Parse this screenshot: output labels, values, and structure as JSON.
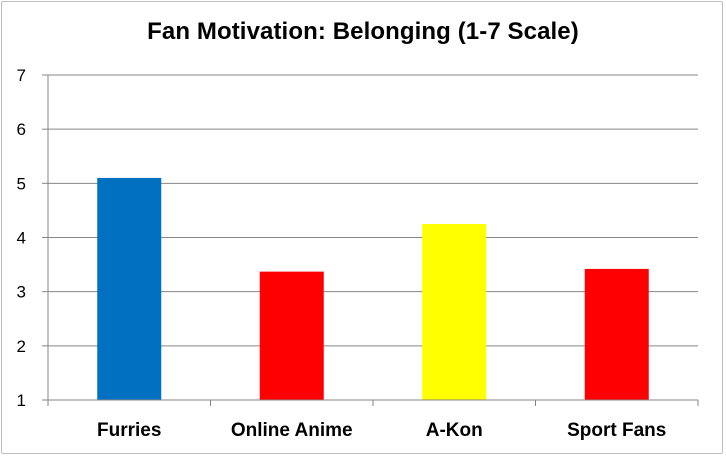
{
  "chart_data": {
    "type": "bar",
    "title": "Fan Motivation: Belonging (1-7 Scale)",
    "xlabel": "",
    "ylabel": "",
    "categories": [
      "Furries",
      "Online Anime",
      "A-Kon",
      "Sport Fans"
    ],
    "values": [
      5.1,
      3.37,
      4.25,
      3.42
    ],
    "colors": [
      "#0070C0",
      "#FF0000",
      "#FFFF00",
      "#FF0000"
    ],
    "ylim": [
      1,
      7
    ],
    "yticks": [
      "1",
      "2",
      "3",
      "4",
      "5",
      "6",
      "7"
    ],
    "grid": true,
    "gridColor": "#868686",
    "legend": "none"
  }
}
